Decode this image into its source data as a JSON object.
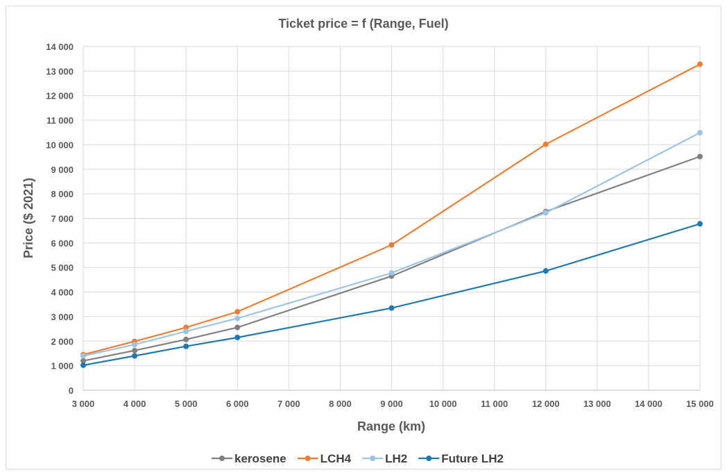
{
  "chart_data": {
    "type": "line",
    "title": "Ticket price = f (Range, Fuel)",
    "xlabel": "Range (km)",
    "ylabel": "Price ($ 2021)",
    "xlim": [
      3000,
      15000
    ],
    "ylim": [
      0,
      14000
    ],
    "x_ticks": [
      3000,
      4000,
      5000,
      6000,
      7000,
      8000,
      9000,
      10000,
      11000,
      12000,
      13000,
      14000,
      15000
    ],
    "x_tick_labels": [
      "3 000",
      "4 000",
      "5 000",
      "6 000",
      "7 000",
      "8 000",
      "9 000",
      "10 000",
      "11 000",
      "12 000",
      "13 000",
      "14 000",
      "15 000"
    ],
    "y_ticks": [
      0,
      1000,
      2000,
      3000,
      4000,
      5000,
      6000,
      7000,
      8000,
      9000,
      10000,
      11000,
      12000,
      13000,
      14000
    ],
    "y_tick_labels": [
      "0",
      "1 000",
      "2 000",
      "3 000",
      "4 000",
      "5 000",
      "6 000",
      "7 000",
      "8 000",
      "9 000",
      "10 000",
      "11 000",
      "12 000",
      "13 000",
      "14 000"
    ],
    "grid": true,
    "legend_position": "bottom",
    "x": [
      3000,
      4000,
      5000,
      6000,
      9000,
      12000,
      15000
    ],
    "series": [
      {
        "name": "kerosene",
        "color": "#808080",
        "values": [
          1200,
          1620,
          2070,
          2560,
          4650,
          7280,
          9520
        ]
      },
      {
        "name": "LCH4",
        "color": "#ed7d31",
        "values": [
          1450,
          1990,
          2560,
          3200,
          5920,
          10020,
          13280
        ]
      },
      {
        "name": "LH2",
        "color": "#9dc3e6",
        "values": [
          1400,
          1860,
          2400,
          2930,
          4780,
          7230,
          10490
        ]
      },
      {
        "name": "Future LH2",
        "color": "#1f77b4",
        "values": [
          1020,
          1400,
          1790,
          2150,
          3350,
          4860,
          6780
        ]
      }
    ]
  }
}
